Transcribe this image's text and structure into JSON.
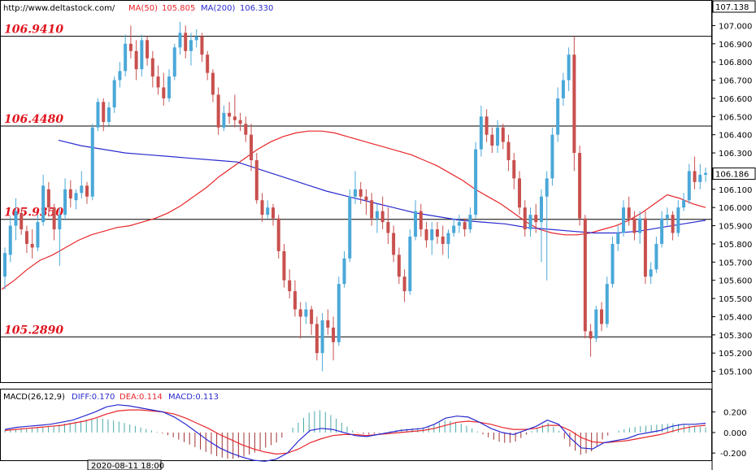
{
  "header": {
    "site": "http://www.deltastock.com/",
    "ma50_label": "MA(50)",
    "ma50_value": "105.805",
    "ma200_label": "MA(200)",
    "ma200_value": "106.330",
    "top_price": "107.138"
  },
  "macd_header": {
    "label": "MACD(26,12,9)",
    "diff": "DIFF:0.170",
    "dea": "DEA:0.114",
    "macd": "MACD:0.113"
  },
  "date_label": "2020-08-11 18:00",
  "current_price": "106.186",
  "colors": {
    "bull": "#4aa8d8",
    "bear": "#c8504e",
    "ma50": "#e8262a",
    "ma200": "#2a2ad0",
    "level_text": "#e0141e",
    "macd_hist_pos": "#4aa8a8",
    "macd_hist_neg": "#a03030"
  },
  "chart_data": {
    "type": "candlestick",
    "ylim": [
      105.05,
      107.138
    ],
    "yticks": [
      "107.000",
      "106.900",
      "106.800",
      "106.700",
      "106.600",
      "106.500",
      "106.400",
      "106.300",
      "106.200",
      "106.100",
      "106.000",
      "105.900",
      "105.800",
      "105.700",
      "105.600",
      "105.500",
      "105.400",
      "105.300",
      "105.200",
      "105.100"
    ],
    "levels": [
      {
        "label": "106.9410",
        "value": 106.941
      },
      {
        "label": "106.4480",
        "value": 106.448
      },
      {
        "label": "105.9350",
        "value": 105.935
      },
      {
        "label": "105.2890",
        "value": 105.289
      }
    ],
    "candles": [
      [
        105.62,
        105.78,
        105.55,
        105.75
      ],
      [
        105.74,
        105.95,
        105.7,
        105.9
      ],
      [
        105.9,
        106.05,
        105.82,
        105.98
      ],
      [
        105.97,
        106.0,
        105.85,
        105.88
      ],
      [
        105.87,
        105.9,
        105.75,
        105.8
      ],
      [
        105.8,
        105.88,
        105.72,
        105.78
      ],
      [
        105.78,
        105.96,
        105.76,
        105.92
      ],
      [
        105.92,
        106.18,
        105.9,
        106.12
      ],
      [
        106.1,
        106.14,
        105.95,
        106.0
      ],
      [
        106.0,
        106.02,
        105.82,
        105.88
      ],
      [
        105.88,
        106.0,
        105.68,
        105.96
      ],
      [
        105.96,
        106.16,
        105.93,
        106.1
      ],
      [
        106.1,
        106.15,
        106.0,
        106.05
      ],
      [
        106.04,
        106.1,
        105.99,
        106.08
      ],
      [
        106.08,
        106.2,
        106.05,
        106.12
      ],
      [
        106.12,
        106.14,
        106.02,
        106.06
      ],
      [
        106.06,
        106.46,
        106.04,
        106.44
      ],
      [
        106.44,
        106.6,
        106.42,
        106.58
      ],
      [
        106.58,
        106.6,
        106.42,
        106.47
      ],
      [
        106.47,
        106.58,
        106.45,
        106.55
      ],
      [
        106.55,
        106.72,
        106.52,
        106.7
      ],
      [
        106.7,
        106.8,
        106.66,
        106.75
      ],
      [
        106.75,
        106.95,
        106.72,
        106.9
      ],
      [
        106.9,
        107.0,
        106.82,
        106.86
      ],
      [
        106.86,
        106.92,
        106.7,
        106.76
      ],
      [
        106.76,
        106.95,
        106.72,
        106.92
      ],
      [
        106.92,
        106.94,
        106.78,
        106.82
      ],
      [
        106.82,
        106.86,
        106.66,
        106.72
      ],
      [
        106.72,
        106.78,
        106.62,
        106.66
      ],
      [
        106.66,
        106.74,
        106.56,
        106.6
      ],
      [
        106.6,
        106.76,
        106.58,
        106.72
      ],
      [
        106.72,
        106.9,
        106.7,
        106.88
      ],
      [
        106.88,
        107.02,
        106.84,
        106.96
      ],
      [
        106.96,
        107.0,
        106.82,
        106.86
      ],
      [
        106.86,
        106.96,
        106.78,
        106.92
      ],
      [
        106.92,
        106.98,
        106.88,
        106.94
      ],
      [
        106.94,
        106.96,
        106.8,
        106.84
      ],
      [
        106.84,
        106.86,
        106.7,
        106.74
      ],
      [
        106.74,
        106.76,
        106.58,
        106.62
      ],
      [
        106.62,
        106.66,
        106.4,
        106.44
      ],
      [
        106.44,
        106.56,
        106.42,
        106.52
      ],
      [
        106.52,
        106.58,
        106.46,
        106.5
      ],
      [
        106.5,
        106.62,
        106.44,
        106.48
      ],
      [
        106.48,
        106.52,
        106.42,
        106.46
      ],
      [
        106.46,
        106.5,
        106.36,
        106.4
      ],
      [
        106.4,
        106.46,
        106.2,
        106.26
      ],
      [
        106.26,
        106.3,
        106.02,
        106.04
      ],
      [
        106.04,
        106.08,
        105.92,
        105.96
      ],
      [
        105.96,
        106.04,
        105.94,
        106.0
      ],
      [
        106.0,
        106.02,
        105.9,
        105.94
      ],
      [
        105.94,
        105.96,
        105.72,
        105.76
      ],
      [
        105.76,
        105.8,
        105.56,
        105.6
      ],
      [
        105.6,
        105.66,
        105.5,
        105.54
      ],
      [
        105.54,
        105.6,
        105.4,
        105.44
      ],
      [
        105.44,
        105.48,
        105.28,
        105.4
      ],
      [
        105.4,
        105.48,
        105.36,
        105.44
      ],
      [
        105.44,
        105.46,
        105.3,
        105.36
      ],
      [
        105.36,
        105.4,
        105.16,
        105.2
      ],
      [
        105.2,
        105.42,
        105.1,
        105.38
      ],
      [
        105.38,
        105.44,
        105.3,
        105.34
      ],
      [
        105.34,
        105.4,
        105.16,
        105.26
      ],
      [
        105.26,
        105.62,
        105.24,
        105.58
      ],
      [
        105.58,
        105.76,
        105.56,
        105.72
      ],
      [
        105.72,
        106.1,
        105.7,
        106.06
      ],
      [
        106.06,
        106.2,
        106.02,
        106.1
      ],
      [
        106.1,
        106.14,
        106.02,
        106.06
      ],
      [
        106.06,
        106.1,
        105.96,
        106.04
      ],
      [
        106.04,
        106.08,
        105.9,
        105.94
      ],
      [
        105.94,
        106.02,
        105.86,
        105.98
      ],
      [
        105.98,
        106.06,
        105.88,
        105.92
      ],
      [
        105.92,
        106.0,
        105.8,
        105.86
      ],
      [
        105.86,
        105.9,
        105.7,
        105.74
      ],
      [
        105.74,
        105.78,
        105.58,
        105.62
      ],
      [
        105.62,
        105.66,
        105.48,
        105.54
      ],
      [
        105.54,
        105.88,
        105.52,
        105.84
      ],
      [
        105.84,
        106.04,
        105.82,
        105.98
      ],
      [
        105.98,
        106.02,
        105.84,
        105.88
      ],
      [
        105.88,
        105.92,
        105.78,
        105.82
      ],
      [
        105.82,
        105.92,
        105.74,
        105.88
      ],
      [
        105.88,
        105.92,
        105.8,
        105.84
      ],
      [
        105.84,
        105.9,
        105.74,
        105.8
      ],
      [
        105.8,
        105.88,
        105.72,
        105.86
      ],
      [
        105.86,
        105.94,
        105.84,
        105.9
      ],
      [
        105.9,
        105.96,
        105.86,
        105.92
      ],
      [
        105.92,
        105.94,
        105.84,
        105.88
      ],
      [
        105.88,
        106.0,
        105.86,
        105.96
      ],
      [
        105.96,
        106.36,
        105.94,
        106.32
      ],
      [
        106.32,
        106.56,
        106.28,
        106.5
      ],
      [
        106.5,
        106.54,
        106.36,
        106.4
      ],
      [
        106.4,
        106.44,
        106.3,
        106.34
      ],
      [
        106.34,
        106.48,
        106.3,
        106.44
      ],
      [
        106.44,
        106.46,
        106.32,
        106.36
      ],
      [
        106.36,
        106.4,
        106.2,
        106.26
      ],
      [
        106.26,
        106.3,
        106.1,
        106.16
      ],
      [
        106.16,
        106.2,
        105.96,
        106.0
      ],
      [
        106.0,
        106.04,
        105.84,
        105.88
      ],
      [
        105.88,
        106.0,
        105.84,
        105.96
      ],
      [
        105.96,
        106.02,
        105.86,
        105.92
      ],
      [
        105.92,
        106.1,
        105.7,
        106.06
      ],
      [
        106.06,
        106.2,
        105.6,
        106.16
      ],
      [
        106.16,
        106.44,
        106.12,
        106.4
      ],
      [
        106.4,
        106.66,
        106.36,
        106.6
      ],
      [
        106.6,
        106.74,
        106.56,
        106.7
      ],
      [
        106.7,
        106.88,
        106.64,
        106.84
      ],
      [
        106.84,
        106.94,
        106.2,
        106.3
      ],
      [
        106.3,
        106.34,
        105.9,
        105.94
      ],
      [
        105.94,
        105.96,
        105.28,
        105.32
      ],
      [
        105.32,
        105.36,
        105.18,
        105.28
      ],
      [
        105.28,
        105.46,
        105.26,
        105.44
      ],
      [
        105.44,
        105.48,
        105.32,
        105.36
      ],
      [
        105.36,
        105.62,
        105.34,
        105.58
      ],
      [
        105.58,
        105.84,
        105.56,
        105.8
      ],
      [
        105.8,
        105.9,
        105.76,
        105.86
      ],
      [
        105.86,
        106.04,
        105.84,
        106.0
      ],
      [
        106.0,
        106.06,
        105.9,
        105.94
      ],
      [
        105.94,
        105.98,
        105.82,
        105.86
      ],
      [
        105.86,
        105.98,
        105.8,
        105.94
      ],
      [
        105.94,
        105.98,
        105.58,
        105.62
      ],
      [
        105.62,
        105.7,
        105.58,
        105.66
      ],
      [
        105.66,
        105.84,
        105.64,
        105.8
      ],
      [
        105.8,
        105.98,
        105.78,
        105.94
      ],
      [
        105.94,
        106.0,
        105.9,
        105.96
      ],
      [
        105.96,
        105.98,
        105.82,
        105.86
      ],
      [
        105.86,
        106.04,
        105.84,
        106.0
      ],
      [
        106.0,
        106.08,
        105.98,
        106.04
      ],
      [
        106.04,
        106.24,
        106.02,
        106.2
      ],
      [
        106.2,
        106.28,
        106.1,
        106.14
      ],
      [
        106.14,
        106.24,
        106.1,
        106.18
      ],
      [
        106.18,
        106.22,
        106.14,
        106.19
      ]
    ],
    "ma50": [
      105.55,
      105.6,
      105.66,
      105.71,
      105.74,
      105.78,
      105.82,
      105.85,
      105.87,
      105.89,
      105.9,
      105.92,
      105.94,
      105.97,
      106.01,
      106.06,
      106.11,
      106.17,
      106.22,
      106.27,
      106.32,
      106.36,
      106.39,
      106.41,
      106.42,
      106.42,
      106.41,
      106.39,
      106.37,
      106.35,
      106.33,
      106.31,
      106.29,
      106.26,
      106.23,
      106.19,
      106.15,
      106.1,
      106.06,
      106.02,
      105.97,
      105.92,
      105.88,
      105.86,
      105.85,
      105.85,
      105.86,
      105.88,
      105.9,
      105.93,
      105.97,
      106.02,
      106.07,
      106.05,
      106.02,
      106.0
    ],
    "ma200": [
      106.37,
      106.34,
      106.32,
      106.3,
      106.29,
      106.28,
      106.27,
      106.26,
      106.25,
      106.21,
      106.17,
      106.13,
      106.09,
      106.06,
      106.03,
      106.0,
      105.97,
      105.95,
      105.93,
      105.92,
      105.91,
      105.89,
      105.88,
      105.87,
      105.86,
      105.86,
      105.87,
      105.89,
      105.91,
      105.93
    ],
    "macd_ylim": [
      -0.3,
      0.32
    ],
    "macd_yticks": [
      "0.200",
      "0.000",
      "-0.200"
    ],
    "macd_diff": [
      0.03,
      0.05,
      0.06,
      0.07,
      0.08,
      0.1,
      0.12,
      0.16,
      0.2,
      0.25,
      0.27,
      0.26,
      0.24,
      0.22,
      0.2,
      0.15,
      0.08,
      0.0,
      -0.08,
      -0.15,
      -0.2,
      -0.24,
      -0.27,
      -0.28,
      -0.26,
      -0.2,
      -0.08,
      0.02,
      0.04,
      0.03,
      0.0,
      -0.03,
      -0.04,
      -0.02,
      0.0,
      0.02,
      0.03,
      0.04,
      0.08,
      0.14,
      0.16,
      0.15,
      0.1,
      0.04,
      0.0,
      -0.02,
      0.02,
      0.06,
      0.12,
      0.08,
      -0.05,
      -0.15,
      -0.16,
      -0.1,
      -0.08,
      -0.06,
      -0.02,
      0.0,
      0.02,
      0.06,
      0.08,
      0.08,
      0.09
    ],
    "macd_dea": [
      0.02,
      0.03,
      0.04,
      0.05,
      0.06,
      0.07,
      0.09,
      0.11,
      0.14,
      0.18,
      0.21,
      0.22,
      0.22,
      0.21,
      0.2,
      0.18,
      0.14,
      0.09,
      0.04,
      -0.02,
      -0.07,
      -0.12,
      -0.16,
      -0.19,
      -0.21,
      -0.2,
      -0.16,
      -0.1,
      -0.06,
      -0.03,
      -0.02,
      -0.02,
      -0.03,
      -0.02,
      -0.01,
      0.0,
      0.01,
      0.02,
      0.04,
      0.07,
      0.1,
      0.11,
      0.1,
      0.08,
      0.05,
      0.03,
      0.03,
      0.04,
      0.07,
      0.07,
      0.02,
      -0.05,
      -0.09,
      -0.1,
      -0.09,
      -0.08,
      -0.06,
      -0.04,
      -0.02,
      0.01,
      0.04,
      0.06,
      0.07
    ],
    "macd_hist": [
      0.02,
      0.03,
      0.04,
      0.05,
      0.06,
      0.08,
      0.1,
      0.12,
      0.14,
      0.13,
      0.11,
      0.08,
      0.05,
      0.02,
      -0.01,
      -0.05,
      -0.1,
      -0.15,
      -0.2,
      -0.24,
      -0.26,
      -0.24,
      -0.2,
      -0.15,
      -0.1,
      0.0,
      0.1,
      0.2,
      0.22,
      0.16,
      0.08,
      0.0,
      -0.02,
      -0.01,
      0.01,
      0.03,
      0.04,
      0.05,
      0.08,
      0.12,
      0.1,
      0.06,
      0.0,
      -0.06,
      -0.1,
      -0.1,
      -0.03,
      0.04,
      0.1,
      0.02,
      -0.14,
      -0.22,
      -0.18,
      -0.05,
      0.01,
      0.04,
      0.06,
      0.07,
      0.08,
      0.09,
      0.08,
      0.06,
      0.05
    ]
  }
}
